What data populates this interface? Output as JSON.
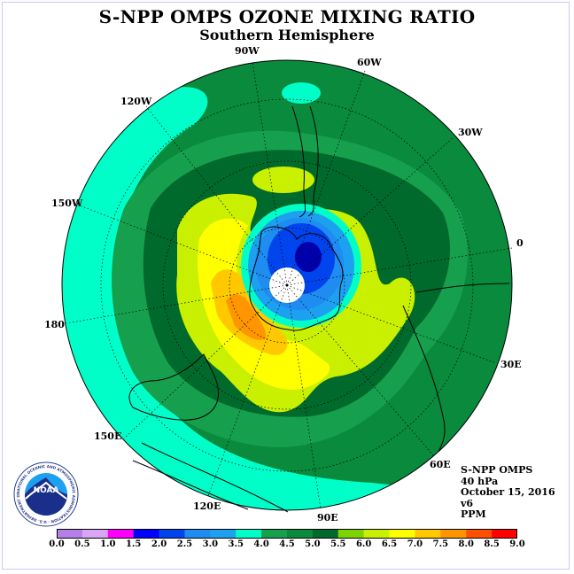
{
  "header": {
    "title": "S-NPP OMPS OZONE MIXING RATIO",
    "subtitle": "Southern Hemisphere"
  },
  "map": {
    "projection": "south-polar-stereographic",
    "longitude_labels": [
      "90W",
      "60W",
      "30W",
      "0",
      "30E",
      "60E",
      "90E",
      "120E",
      "150E",
      "180",
      "150W",
      "120W"
    ]
  },
  "info": {
    "instrument": "S-NPP OMPS",
    "level": "40 hPa",
    "date": "October 15, 2016",
    "version": "v6",
    "units": "PPM"
  },
  "colorbar": {
    "ticks": [
      "0.0",
      "0.5",
      "1.0",
      "1.5",
      "2.0",
      "2.5",
      "3.0",
      "3.5",
      "4.0",
      "4.5",
      "5.0",
      "5.5",
      "6.0",
      "6.5",
      "7.0",
      "7.5",
      "8.0",
      "8.5",
      "9.0"
    ],
    "colors": [
      "#b57fe8",
      "#d9a6f5",
      "#ff00ff",
      "#0000ff",
      "#0044ee",
      "#1e8cf0",
      "#1ea0f0",
      "#00ffc8",
      "#16a04e",
      "#0a8a3c",
      "#006a2c",
      "#7ed400",
      "#c8f000",
      "#ffff00",
      "#ffc800",
      "#ff9600",
      "#ff5000",
      "#ff0000",
      "#965030"
    ]
  },
  "logo": {
    "text": "NOAA",
    "ring_text": "NATIONAL OCEANIC AND ATMOSPHERIC ADMINISTRATION · U.S. DEPARTMENT OF COMMERCE"
  }
}
